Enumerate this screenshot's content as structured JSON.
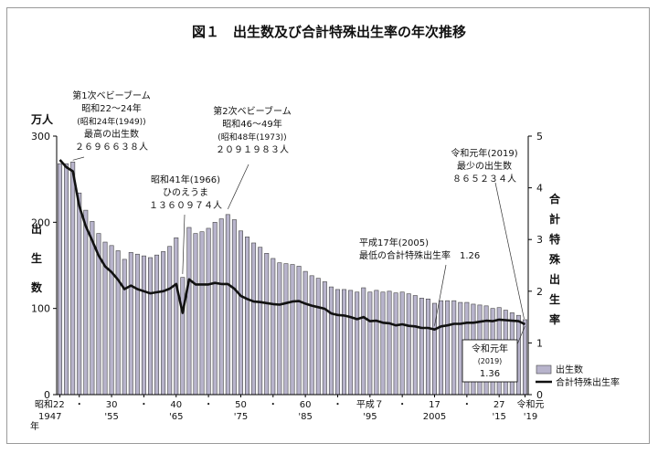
{
  "chart_data": {
    "type": "bar",
    "title": "図１　出生数及び合計特殊出生率の年次推移",
    "y_left": {
      "unit": "万人",
      "label": "出生数",
      "ticks": [
        "0",
        "100",
        "200",
        "300"
      ],
      "ylim": [
        0,
        300
      ]
    },
    "y_right": {
      "label": "合計特殊出生率",
      "ticks": [
        "0",
        "1",
        "2",
        "3",
        "4",
        "5"
      ],
      "ylim": [
        0,
        5
      ]
    },
    "x_tick_labels": [
      {
        "year": 1947,
        "top": "昭和22",
        "bottom": "1947"
      },
      {
        "year": 1950,
        "top": "・"
      },
      {
        "year": 1955,
        "top": "30",
        "bottom": "'55"
      },
      {
        "year": 1960,
        "top": "・"
      },
      {
        "year": 1965,
        "top": "40",
        "bottom": "'65"
      },
      {
        "year": 1970,
        "top": "・"
      },
      {
        "year": 1975,
        "top": "50",
        "bottom": "'75"
      },
      {
        "year": 1980,
        "top": "・"
      },
      {
        "year": 1985,
        "top": "60",
        "bottom": "'85"
      },
      {
        "year": 1990,
        "top": "・"
      },
      {
        "year": 1995,
        "top": "平成７",
        "bottom": "'95"
      },
      {
        "year": 2000,
        "top": "・"
      },
      {
        "year": 2005,
        "top": "17",
        "bottom": "2005"
      },
      {
        "year": 2010,
        "top": "・"
      },
      {
        "year": 2015,
        "top": "27",
        "bottom": "'15"
      },
      {
        "year": 2019,
        "top": "令和元",
        "bottom": "'19"
      }
    ],
    "x_axis_unit": "年",
    "x": [
      1947,
      1948,
      1949,
      1950,
      1951,
      1952,
      1953,
      1954,
      1955,
      1956,
      1957,
      1958,
      1959,
      1960,
      1961,
      1962,
      1963,
      1964,
      1965,
      1966,
      1967,
      1968,
      1969,
      1970,
      1971,
      1972,
      1973,
      1974,
      1975,
      1976,
      1977,
      1978,
      1979,
      1980,
      1981,
      1982,
      1983,
      1984,
      1985,
      1986,
      1987,
      1988,
      1989,
      1990,
      1991,
      1992,
      1993,
      1994,
      1995,
      1996,
      1997,
      1998,
      1999,
      2000,
      2001,
      2002,
      2003,
      2004,
      2005,
      2006,
      2007,
      2008,
      2009,
      2010,
      2011,
      2012,
      2013,
      2014,
      2015,
      2016,
      2017,
      2018,
      2019
    ],
    "series": [
      {
        "name": "出生数",
        "axis": "left",
        "values": [
          268,
          268,
          270,
          234,
          214,
          201,
          187,
          177,
          173,
          167,
          157,
          165,
          163,
          161,
          159,
          162,
          166,
          172,
          182,
          136,
          194,
          187,
          189,
          193,
          200,
          204,
          209,
          203,
          190,
          183,
          176,
          171,
          164,
          158,
          153,
          152,
          151,
          149,
          143,
          138,
          135,
          131,
          125,
          122,
          122,
          121,
          119,
          124,
          119,
          121,
          119,
          120,
          118,
          119,
          117,
          115,
          112,
          111,
          106,
          109,
          109,
          109,
          107,
          107,
          105,
          104,
          103,
          100,
          101,
          98,
          95,
          92,
          87
        ]
      },
      {
        "name": "合計特殊出生率",
        "axis": "right",
        "values": [
          4.54,
          4.4,
          4.32,
          3.65,
          3.26,
          2.98,
          2.69,
          2.48,
          2.37,
          2.22,
          2.04,
          2.11,
          2.04,
          2.0,
          1.96,
          1.98,
          2.0,
          2.05,
          2.14,
          1.58,
          2.23,
          2.13,
          2.13,
          2.13,
          2.16,
          2.14,
          2.14,
          2.05,
          1.91,
          1.85,
          1.8,
          1.79,
          1.77,
          1.75,
          1.74,
          1.77,
          1.8,
          1.81,
          1.76,
          1.72,
          1.69,
          1.66,
          1.57,
          1.54,
          1.53,
          1.5,
          1.46,
          1.5,
          1.42,
          1.43,
          1.39,
          1.38,
          1.34,
          1.36,
          1.33,
          1.32,
          1.29,
          1.29,
          1.26,
          1.32,
          1.34,
          1.37,
          1.37,
          1.39,
          1.39,
          1.41,
          1.43,
          1.42,
          1.45,
          1.44,
          1.43,
          1.42,
          1.36
        ]
      }
    ],
    "legend": {
      "placement": "bottom-right",
      "entries": [
        "出生数",
        "合計特殊出生率"
      ]
    },
    "annotations": [
      {
        "lines": [
          "第1次ベビーブーム",
          "昭和22～24年",
          "(昭和24年(1949))",
          "最高の出生数",
          "２６９６６３８人"
        ]
      },
      {
        "lines": [
          "第2次ベビーブーム",
          "昭和46～49年",
          "(昭和48年(1973))",
          "２０９１９８３人"
        ]
      },
      {
        "lines": [
          "昭和41年(1966)",
          "ひのえうま",
          "１３６０９７４人"
        ]
      },
      {
        "lines": [
          "令和元年(2019)",
          "最少の出生数",
          "８６５２３４人"
        ]
      },
      {
        "lines": [
          "平成17年(2005)",
          "最低の合計特殊出生率　1.26"
        ]
      },
      {
        "lines": [
          "令和元年",
          "(2019)",
          "1.36"
        ]
      }
    ],
    "colors": {
      "bar": "#b8b4cc",
      "bar_edge": "#444444",
      "line": "#111111"
    }
  }
}
